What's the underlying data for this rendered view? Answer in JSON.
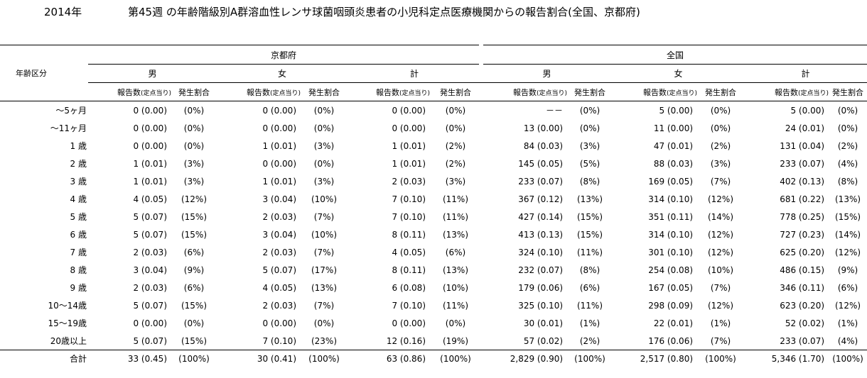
{
  "header": {
    "year": "2014年",
    "title": "第45週 の年齢階級別A群溶血性レンサ球菌咽頭炎患者の小児科定点医療機関からの報告割合(全国、京都府)"
  },
  "columns": {
    "age_group": "年齢区分",
    "regions": [
      "京都府",
      "全国"
    ],
    "sexes": [
      "男",
      "女",
      "計"
    ],
    "count_label": "報告数",
    "count_sub": "(定点当り)",
    "ratio_label": "発生割合"
  },
  "rows": [
    {
      "age": "～5ヶ月",
      "v": [
        "0 (0.00)",
        "(0%)",
        "0 (0.00)",
        "(0%)",
        "0 (0.00)",
        "(0%)",
        "－－",
        "(0%)",
        "5 (0.00)",
        "(0%)",
        "5 (0.00)",
        "(0%)"
      ]
    },
    {
      "age": "～11ヶ月",
      "v": [
        "0 (0.00)",
        "(0%)",
        "0 (0.00)",
        "(0%)",
        "0 (0.00)",
        "(0%)",
        "13 (0.00)",
        "(0%)",
        "11 (0.00)",
        "(0%)",
        "24 (0.01)",
        "(0%)"
      ]
    },
    {
      "age": "1 歳",
      "v": [
        "0 (0.00)",
        "(0%)",
        "1 (0.01)",
        "(3%)",
        "1 (0.01)",
        "(2%)",
        "84 (0.03)",
        "(3%)",
        "47 (0.01)",
        "(2%)",
        "131 (0.04)",
        "(2%)"
      ]
    },
    {
      "age": "2 歳",
      "v": [
        "1 (0.01)",
        "(3%)",
        "0 (0.00)",
        "(0%)",
        "1 (0.01)",
        "(2%)",
        "145 (0.05)",
        "(5%)",
        "88 (0.03)",
        "(3%)",
        "233 (0.07)",
        "(4%)"
      ]
    },
    {
      "age": "3 歳",
      "v": [
        "1 (0.01)",
        "(3%)",
        "1 (0.01)",
        "(3%)",
        "2 (0.03)",
        "(3%)",
        "233 (0.07)",
        "(8%)",
        "169 (0.05)",
        "(7%)",
        "402 (0.13)",
        "(8%)"
      ]
    },
    {
      "age": "4 歳",
      "v": [
        "4 (0.05)",
        "(12%)",
        "3 (0.04)",
        "(10%)",
        "7 (0.10)",
        "(11%)",
        "367 (0.12)",
        "(13%)",
        "314 (0.10)",
        "(12%)",
        "681 (0.22)",
        "(13%)"
      ]
    },
    {
      "age": "5 歳",
      "v": [
        "5 (0.07)",
        "(15%)",
        "2 (0.03)",
        "(7%)",
        "7 (0.10)",
        "(11%)",
        "427 (0.14)",
        "(15%)",
        "351 (0.11)",
        "(14%)",
        "778 (0.25)",
        "(15%)"
      ]
    },
    {
      "age": "6 歳",
      "v": [
        "5 (0.07)",
        "(15%)",
        "3 (0.04)",
        "(10%)",
        "8 (0.11)",
        "(13%)",
        "413 (0.13)",
        "(15%)",
        "314 (0.10)",
        "(12%)",
        "727 (0.23)",
        "(14%)"
      ]
    },
    {
      "age": "7 歳",
      "v": [
        "2 (0.03)",
        "(6%)",
        "2 (0.03)",
        "(7%)",
        "4 (0.05)",
        "(6%)",
        "324 (0.10)",
        "(11%)",
        "301 (0.10)",
        "(12%)",
        "625 (0.20)",
        "(12%)"
      ]
    },
    {
      "age": "8 歳",
      "v": [
        "3 (0.04)",
        "(9%)",
        "5 (0.07)",
        "(17%)",
        "8 (0.11)",
        "(13%)",
        "232 (0.07)",
        "(8%)",
        "254 (0.08)",
        "(10%)",
        "486 (0.15)",
        "(9%)"
      ]
    },
    {
      "age": "9 歳",
      "v": [
        "2 (0.03)",
        "(6%)",
        "4 (0.05)",
        "(13%)",
        "6 (0.08)",
        "(10%)",
        "179 (0.06)",
        "(6%)",
        "167 (0.05)",
        "(7%)",
        "346 (0.11)",
        "(6%)"
      ]
    },
    {
      "age": "10～14歳",
      "v": [
        "5 (0.07)",
        "(15%)",
        "2 (0.03)",
        "(7%)",
        "7 (0.10)",
        "(11%)",
        "325 (0.10)",
        "(11%)",
        "298 (0.09)",
        "(12%)",
        "623 (0.20)",
        "(12%)"
      ]
    },
    {
      "age": "15～19歳",
      "v": [
        "0 (0.00)",
        "(0%)",
        "0 (0.00)",
        "(0%)",
        "0 (0.00)",
        "(0%)",
        "30 (0.01)",
        "(1%)",
        "22 (0.01)",
        "(1%)",
        "52 (0.02)",
        "(1%)"
      ]
    },
    {
      "age": "20歳以上",
      "v": [
        "5 (0.07)",
        "(15%)",
        "7 (0.10)",
        "(23%)",
        "12 (0.16)",
        "(19%)",
        "57 (0.02)",
        "(2%)",
        "176 (0.06)",
        "(7%)",
        "233 (0.07)",
        "(4%)"
      ]
    }
  ],
  "total": {
    "age": "合計",
    "v": [
      "33 (0.45)",
      "(100%)",
      "30 (0.41)",
      "(100%)",
      "63 (0.86)",
      "(100%)",
      "2,829 (0.90)",
      "(100%)",
      "2,517 (0.80)",
      "(100%)",
      "5,346 (1.70)",
      "(100%)"
    ]
  }
}
